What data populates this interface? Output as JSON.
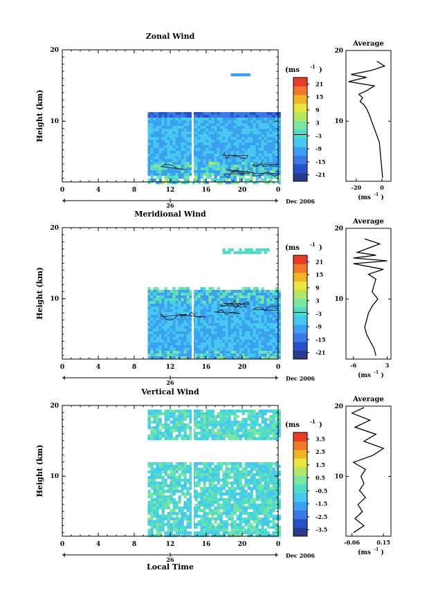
{
  "figure": {
    "xlabel": "Local Time",
    "date_label": "Dec 2006",
    "day_label": "26",
    "unit_label": "(ms",
    "unit_sup": "-1",
    "avg_title": "Average"
  },
  "colors": {
    "scale": [
      "#283c8c",
      "#2850c8",
      "#3c78e6",
      "#3ca0f0",
      "#46c8f0",
      "#50dcc8",
      "#78e6a0",
      "#b4e664",
      "#e6e63c",
      "#f0b428",
      "#f07828",
      "#e63c28"
    ],
    "contour": "#000000",
    "gap": "#ffffff"
  },
  "chart_data": [
    {
      "type": "heatmap",
      "title": "Zonal Wind",
      "ylabel": "Height (km)",
      "x_range": [
        0,
        24
      ],
      "y_range": [
        1.5,
        20
      ],
      "x_ticks": [
        "0",
        "4",
        "8",
        "12",
        "16",
        "20",
        "0"
      ],
      "y_ticks": [
        "10",
        "20"
      ],
      "data_x_range": [
        9.5,
        24
      ],
      "gap_x": 14.5,
      "colorbar": {
        "unit": "(ms-1)",
        "ticks": [
          "21",
          "15",
          "9",
          "3",
          "-3",
          "-9",
          "-15",
          "-21"
        ],
        "range": [
          -24,
          24
        ]
      },
      "average": {
        "x_ticks": [
          "-20",
          "0"
        ],
        "x_range": [
          -28,
          7
        ],
        "profile": [
          [
            0.5,
            2
          ],
          [
            0,
            3
          ],
          [
            -0.5,
            4
          ],
          [
            -1,
            5
          ],
          [
            -1.5,
            6
          ],
          [
            -2,
            7
          ],
          [
            -4,
            8
          ],
          [
            -6,
            9
          ],
          [
            -8,
            10
          ],
          [
            -10,
            11
          ],
          [
            -12,
            11.8
          ],
          [
            -14,
            12.3
          ],
          [
            -17,
            12.8
          ],
          [
            -15,
            13.3
          ],
          [
            -18,
            13.8
          ],
          [
            -12,
            14.3
          ],
          [
            -6,
            15
          ],
          [
            -26,
            15.6
          ],
          [
            -12,
            16.2
          ],
          [
            -24,
            16.6
          ],
          [
            -8,
            17.2
          ],
          [
            2,
            17.8
          ],
          [
            -4,
            18.5
          ]
        ]
      }
    },
    {
      "type": "heatmap",
      "title": "Meridional Wind",
      "ylabel": "Height (km)",
      "x_range": [
        0,
        24
      ],
      "y_range": [
        1.5,
        20
      ],
      "x_ticks": [
        "0",
        "4",
        "8",
        "12",
        "16",
        "20",
        "0"
      ],
      "y_ticks": [
        "10",
        "20"
      ],
      "data_x_range": [
        9.5,
        24
      ],
      "gap_x": 14.5,
      "colorbar": {
        "unit": "(ms-1)",
        "ticks": [
          "21",
          "15",
          "9",
          "3",
          "-3",
          "-9",
          "-15",
          "-21"
        ],
        "range": [
          -24,
          24
        ]
      },
      "average": {
        "x_ticks": [
          "-6",
          "3"
        ],
        "x_range": [
          -8,
          4
        ],
        "profile": [
          [
            0,
            2
          ],
          [
            -0.5,
            3
          ],
          [
            -1.5,
            4
          ],
          [
            -2.5,
            5
          ],
          [
            -3,
            6
          ],
          [
            -2.5,
            7
          ],
          [
            -2,
            8
          ],
          [
            -1,
            9
          ],
          [
            0.5,
            10
          ],
          [
            -1,
            11
          ],
          [
            -0.5,
            12
          ],
          [
            0,
            12.8
          ],
          [
            -2,
            13.5
          ],
          [
            2,
            14.2
          ],
          [
            -6,
            15
          ],
          [
            3,
            15.4
          ],
          [
            -6,
            15.8
          ],
          [
            0,
            16.2
          ],
          [
            -5,
            16.6
          ],
          [
            -2,
            17.2
          ],
          [
            1,
            17.8
          ],
          [
            -3,
            18.5
          ]
        ]
      }
    },
    {
      "type": "heatmap",
      "title": "Vertical Wind",
      "ylabel": "Height (km)",
      "xlabel": "Local Time",
      "x_range": [
        0,
        24
      ],
      "y_range": [
        1.5,
        20
      ],
      "x_ticks": [
        "0",
        "4",
        "8",
        "12",
        "16",
        "20",
        "0"
      ],
      "y_ticks": [
        "10",
        "20"
      ],
      "data_x_range": [
        9.5,
        24
      ],
      "gap_x": 14.5,
      "colorbar": {
        "unit": "(ms-1)",
        "ticks": [
          "3.5",
          "2.5",
          "1.5",
          "0.5",
          "-0.5",
          "-1.5",
          "-2.5",
          "-3.5"
        ],
        "range": [
          -4,
          4
        ]
      },
      "average": {
        "x_ticks": [
          "-0.06",
          "0.15"
        ],
        "x_range": [
          -0.1,
          0.2
        ],
        "profile": [
          [
            -0.05,
            2
          ],
          [
            0.02,
            3
          ],
          [
            -0.04,
            4
          ],
          [
            0.01,
            5
          ],
          [
            -0.02,
            6
          ],
          [
            0.03,
            7
          ],
          [
            -0.01,
            8
          ],
          [
            0.02,
            9
          ],
          [
            0.0,
            10
          ],
          [
            0.03,
            11
          ],
          [
            -0.05,
            12
          ],
          [
            0.08,
            13
          ],
          [
            0.15,
            14
          ],
          [
            0.02,
            15
          ],
          [
            0.1,
            16
          ],
          [
            -0.04,
            17
          ],
          [
            0.06,
            18
          ],
          [
            -0.06,
            19
          ],
          [
            0.02,
            19.8
          ]
        ]
      }
    }
  ]
}
